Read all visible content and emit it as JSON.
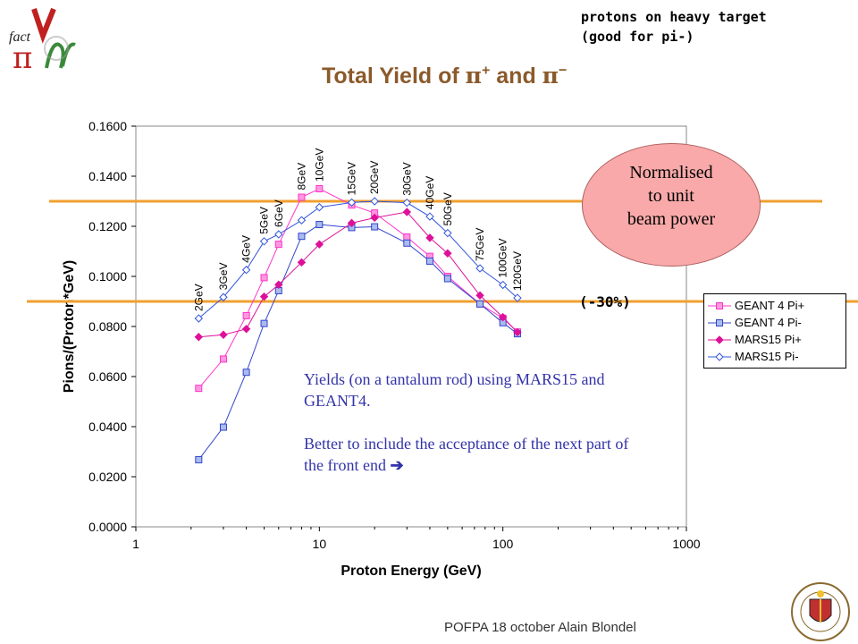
{
  "corner_note": "protons on heavy target\n(good for pi-)",
  "title": {
    "prefix": "Total Yield of ",
    "pi1": "π",
    "sup1": "+",
    "mid": " and ",
    "pi2": "π",
    "sup2": "−"
  },
  "footer": "POFPA 18 october  Alain Blondel",
  "callout": {
    "line1": "Normalised",
    "line2": "to unit",
    "line3": "beam power"
  },
  "percent_label": "(-30%)",
  "annotation": {
    "p1": "Yields (on a tantalum rod) using MARS15 and GEANT4.",
    "p2": "Better to include the acceptance of the next part of the front end"
  },
  "colors": {
    "orange_line": "#f0a030",
    "geant_pip": "#ff33cc",
    "geant_pim": "#3344cc",
    "mars_pip": "#dd1199",
    "mars_pim": "#3355dd",
    "title": "#8b5a2b"
  },
  "chart_data": {
    "type": "line",
    "xscale": "log",
    "xlabel": "Proton Energy (GeV)",
    "ylabel": "Pions/(Proton*GeV)",
    "xlim": [
      1,
      1000
    ],
    "ylim": [
      0,
      0.16
    ],
    "xticks": [
      "1",
      "10",
      "100",
      "1000"
    ],
    "yticks": [
      "0.0000",
      "0.0200",
      "0.0400",
      "0.0600",
      "0.0800",
      "0.1000",
      "0.1200",
      "0.1400",
      "0.1600"
    ],
    "legend_position": "right",
    "grid": false,
    "x": [
      2.2,
      3,
      4,
      5,
      6,
      8,
      10,
      15,
      20,
      30,
      40,
      50,
      75,
      100,
      120
    ],
    "energy_labels": [
      "2GeV",
      "3GeV",
      "4GeV",
      "5GeV",
      "6GeV",
      "8GeV",
      "10GeV",
      "15GeV",
      "20GeV",
      "30GeV",
      "40GeV",
      "50GeV",
      "75GeV",
      "100GeV",
      "120GeV"
    ],
    "series": [
      {
        "name": "GEANT 4 Pi+",
        "values": [
          0.0553,
          0.067,
          0.0843,
          0.0995,
          0.1128,
          0.1316,
          0.135,
          0.1285,
          0.1253,
          0.1157,
          0.108,
          0.1,
          0.089,
          0.0833,
          0.0778
        ]
      },
      {
        "name": "GEANT 4 Pi-",
        "values": [
          0.0268,
          0.0398,
          0.0617,
          0.0812,
          0.0943,
          0.116,
          0.1207,
          0.1195,
          0.1198,
          0.1133,
          0.1061,
          0.0991,
          0.089,
          0.0815,
          0.0771
        ]
      },
      {
        "name": "MARS15 Pi+",
        "values": [
          0.0758,
          0.0767,
          0.079,
          0.0919,
          0.0967,
          0.1056,
          0.1128,
          0.1213,
          0.1234,
          0.1257,
          0.1154,
          0.1092,
          0.0924,
          0.0837,
          0.0777
        ]
      },
      {
        "name": "MARS15 Pi-",
        "values": [
          0.0832,
          0.0917,
          0.1026,
          0.114,
          0.1168,
          0.1224,
          0.1276,
          0.1295,
          0.13,
          0.1294,
          0.1239,
          0.1173,
          0.1032,
          0.0966,
          0.0914
        ]
      }
    ]
  }
}
